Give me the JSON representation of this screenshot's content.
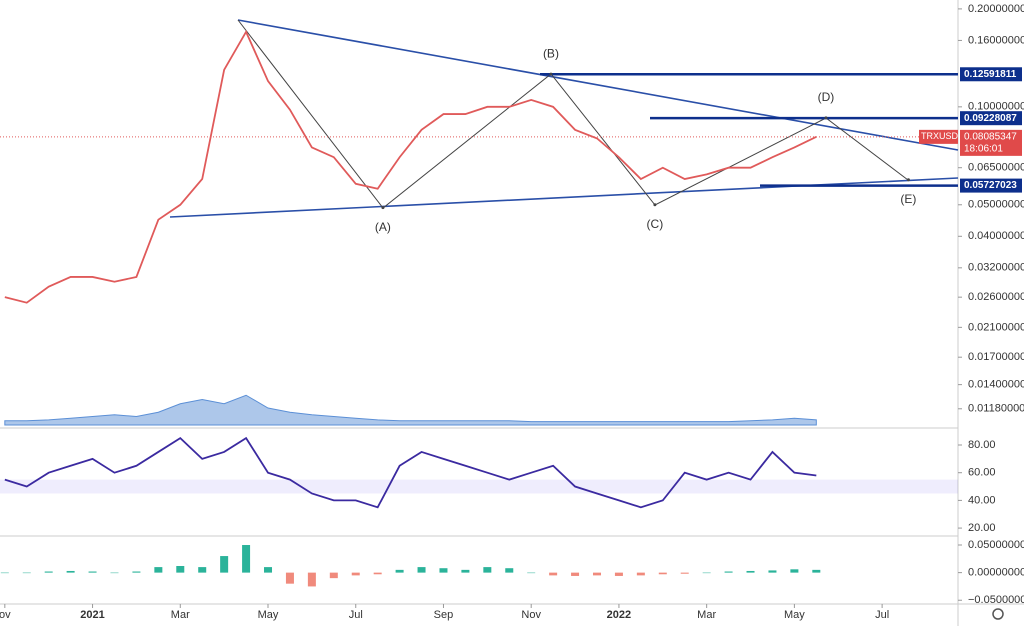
{
  "chart_data": [
    {
      "type": "line",
      "symbol": "TRXUSD",
      "countdown": "18:06:01",
      "log_scale": true,
      "color": "#e05a5a",
      "x": [
        0,
        0.5,
        1,
        1.5,
        2,
        2.5,
        3,
        3.5,
        4,
        4.5,
        5,
        5.5,
        6,
        6.5,
        7,
        7.5,
        8,
        8.5,
        9,
        9.5,
        10,
        10.5,
        11,
        11.5,
        12,
        12.5,
        13,
        13.5,
        14,
        14.5,
        15,
        15.5,
        16,
        16.5,
        17,
        17.5,
        18,
        18.5
      ],
      "values": [
        0.026,
        0.025,
        0.028,
        0.03,
        0.03,
        0.029,
        0.03,
        0.045,
        0.05,
        0.06,
        0.13,
        0.17,
        0.12,
        0.098,
        0.075,
        0.07,
        0.058,
        0.056,
        0.07,
        0.085,
        0.095,
        0.095,
        0.1,
        0.1,
        0.105,
        0.1,
        0.085,
        0.08,
        0.07,
        0.06,
        0.065,
        0.06,
        0.062,
        0.065,
        0.065,
        0.07,
        0.075,
        0.08085347
      ],
      "xlim": [
        -0.11,
        21.73
      ],
      "xticks": [
        {
          "value": 0,
          "label": "ov"
        },
        {
          "value": 2,
          "label": "2021"
        },
        {
          "value": 4,
          "label": "Mar"
        },
        {
          "value": 6,
          "label": "May"
        },
        {
          "value": 8,
          "label": "Jul"
        },
        {
          "value": 10,
          "label": "Sep"
        },
        {
          "value": 12,
          "label": "Nov"
        },
        {
          "value": 14,
          "label": "2022"
        },
        {
          "value": 16,
          "label": "Mar"
        },
        {
          "value": 18,
          "label": "May"
        },
        {
          "value": 20,
          "label": "Jul"
        }
      ],
      "ylim": [
        0.0103,
        0.213
      ],
      "yticks": [
        {
          "value": 0.2,
          "label": "0.20000000"
        },
        {
          "value": 0.16,
          "label": "0.16000000"
        },
        {
          "value": 0.1,
          "label": "0.10000000"
        },
        {
          "value": 0.065,
          "label": "0.06500000"
        },
        {
          "value": 0.05,
          "label": "0.05000000"
        },
        {
          "value": 0.04,
          "label": "0.04000000"
        },
        {
          "value": 0.032,
          "label": "0.03200000"
        },
        {
          "value": 0.026,
          "label": "0.02600000"
        },
        {
          "value": 0.021,
          "label": "0.02100000"
        },
        {
          "value": 0.017,
          "label": "0.01700000"
        },
        {
          "value": 0.014,
          "label": "0.01400000"
        },
        {
          "value": 0.0118,
          "label": "0.01180000"
        }
      ],
      "levels": [
        0.12591811,
        0.09228087,
        0.05727023
      ],
      "level_color": "#0d2f8c",
      "annotations": [
        {
          "text": "(A)",
          "x": 8.62,
          "y": 0.049,
          "position": "below"
        },
        {
          "text": "(B)",
          "x": 12.45,
          "y": 0.126,
          "position": "above"
        },
        {
          "text": "(C)",
          "x": 14.82,
          "y": 0.05,
          "position": "below"
        },
        {
          "text": "(D)",
          "x": 18.72,
          "y": 0.0925,
          "position": "above"
        },
        {
          "text": "(E)",
          "x": 20.6,
          "y": 0.0597,
          "position": "below"
        }
      ]
    },
    {
      "type": "area",
      "color": "#5b8fd6",
      "ylim": [
        0,
        100
      ],
      "values": [
        5,
        5,
        6,
        8,
        10,
        12,
        10,
        15,
        25,
        30,
        25,
        35,
        20,
        15,
        12,
        10,
        8,
        6,
        5,
        5,
        5,
        5,
        5,
        5,
        4,
        4,
        4,
        4,
        4,
        4,
        4,
        4,
        4,
        4,
        5,
        6,
        8,
        6
      ]
    },
    {
      "type": "line",
      "color": "#3b2aa0",
      "ylim": [
        15,
        89.4
      ],
      "band": [
        45,
        55
      ],
      "yticks": [
        {
          "value": 80,
          "label": "80.00"
        },
        {
          "value": 60,
          "label": "60.00"
        },
        {
          "value": 40,
          "label": "40.00"
        },
        {
          "value": 20,
          "label": "20.00"
        }
      ],
      "values": [
        55,
        50,
        60,
        65,
        70,
        60,
        65,
        75,
        85,
        70,
        75,
        85,
        60,
        55,
        45,
        40,
        40,
        35,
        65,
        75,
        70,
        65,
        60,
        55,
        60,
        65,
        50,
        45,
        40,
        35,
        40,
        60,
        55,
        60,
        55,
        75,
        60,
        58
      ]
    },
    {
      "type": "bar",
      "color": "#2bb39a",
      "negative_color": "#f08a7c",
      "ylim": [
        -0.055,
        0.0627
      ],
      "yticks": [
        {
          "value": 0.05,
          "label": "0.05000000"
        },
        {
          "value": 0,
          "label": "0.00000000"
        },
        {
          "value": -0.05,
          "label": "−0.05000000"
        }
      ],
      "values": [
        0,
        0,
        0.002,
        0.003,
        0.002,
        0,
        0.002,
        0.01,
        0.012,
        0.01,
        0.03,
        0.05,
        0.01,
        -0.02,
        -0.025,
        -0.01,
        -0.005,
        -0.003,
        0.005,
        0.01,
        0.008,
        0.005,
        0.01,
        0.008,
        0,
        -0.005,
        -0.006,
        -0.005,
        -0.006,
        -0.005,
        -0.003,
        -0.002,
        0,
        0.002,
        0.003,
        0.004,
        0.006,
        0.005
      ]
    }
  ]
}
